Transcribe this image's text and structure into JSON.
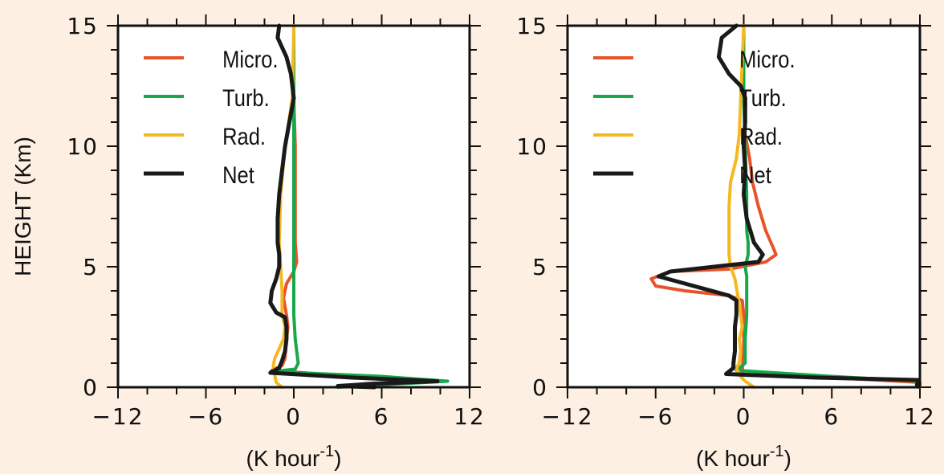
{
  "chart_data": [
    {
      "type": "line",
      "panel": "left",
      "ylabel": "HEIGHT (Km)",
      "xlabel": "(K hour",
      "xlabel_sup": "-1",
      "xlabel_close": ")",
      "xlim": [
        -12,
        12
      ],
      "ylim": [
        0,
        15
      ],
      "xticks": [
        -12,
        -6,
        0,
        6,
        12
      ],
      "xtick_labels": [
        "−12",
        "−6",
        "0",
        "6",
        "12"
      ],
      "yticks": [
        0,
        5,
        10,
        15
      ],
      "ytick_labels": [
        "0",
        "5",
        "10",
        "15"
      ],
      "legend_position": "top-left",
      "series": [
        {
          "name": "Micro.",
          "color": "#e8542a",
          "points": [
            [
              0,
              15
            ],
            [
              0,
              12
            ],
            [
              0.1,
              10
            ],
            [
              0.1,
              8
            ],
            [
              0.1,
              6
            ],
            [
              0.2,
              5.2
            ],
            [
              0,
              4.8
            ],
            [
              -0.5,
              4.3
            ],
            [
              -0.7,
              3.7
            ],
            [
              -0.5,
              3.0
            ],
            [
              -0.4,
              2.5
            ],
            [
              -0.5,
              2.0
            ],
            [
              -0.6,
              1.2
            ],
            [
              -0.8,
              0.9
            ],
            [
              -1.5,
              0.7
            ],
            [
              5,
              0.4
            ],
            [
              9.5,
              0.25
            ],
            [
              5,
              0.15
            ],
            [
              3.5,
              0.05
            ],
            [
              5.5,
              0
            ]
          ]
        },
        {
          "name": "Turb.",
          "color": "#17a84a",
          "points": [
            [
              0,
              15
            ],
            [
              0,
              10
            ],
            [
              0,
              6
            ],
            [
              0,
              4
            ],
            [
              0,
              3
            ],
            [
              0.1,
              2
            ],
            [
              0.2,
              1.5
            ],
            [
              0.3,
              1
            ],
            [
              0.1,
              0.75
            ],
            [
              -1.5,
              0.65
            ],
            [
              6,
              0.45
            ],
            [
              10.5,
              0.25
            ],
            [
              6,
              0.1
            ],
            [
              3,
              0
            ]
          ]
        },
        {
          "name": "Rad.",
          "color": "#f5b820",
          "points": [
            [
              0,
              15
            ],
            [
              -0.1,
              12
            ],
            [
              -0.6,
              10
            ],
            [
              -0.9,
              8
            ],
            [
              -1,
              6
            ],
            [
              -0.9,
              5
            ],
            [
              -0.8,
              4
            ],
            [
              -0.8,
              3
            ],
            [
              -0.6,
              2.5
            ],
            [
              -0.7,
              2
            ],
            [
              -1,
              1.6
            ],
            [
              -1.3,
              1.2
            ],
            [
              -1.4,
              0.9
            ],
            [
              -1.3,
              0.5
            ],
            [
              -1.2,
              0.2
            ],
            [
              -0.8,
              0
            ]
          ]
        },
        {
          "name": "Net",
          "color": "#1a1a1a",
          "points": [
            [
              -1,
              15
            ],
            [
              -1.1,
              14.5
            ],
            [
              -0.5,
              13.7
            ],
            [
              -0.2,
              13
            ],
            [
              0,
              12
            ],
            [
              -0.3,
              11
            ],
            [
              -0.6,
              10
            ],
            [
              -0.8,
              9
            ],
            [
              -1,
              8
            ],
            [
              -1.1,
              7
            ],
            [
              -1.1,
              6
            ],
            [
              -1,
              5.5
            ],
            [
              -1,
              5
            ],
            [
              -1.2,
              4.5
            ],
            [
              -1.5,
              4
            ],
            [
              -1.6,
              3.5
            ],
            [
              -1.2,
              3.1
            ],
            [
              -0.6,
              2.9
            ],
            [
              -0.5,
              2.5
            ],
            [
              -0.5,
              2
            ],
            [
              -0.6,
              1.5
            ],
            [
              -0.8,
              1.1
            ],
            [
              -1,
              0.8
            ],
            [
              -1.6,
              0.6
            ],
            [
              4,
              0.4
            ],
            [
              9.8,
              0.25
            ],
            [
              5.5,
              0.15
            ],
            [
              3,
              0.05
            ],
            [
              5.5,
              0
            ]
          ]
        }
      ]
    },
    {
      "type": "line",
      "panel": "right",
      "ylabel": "",
      "xlabel": "(K hour",
      "xlabel_sup": "-1",
      "xlabel_close": ")",
      "xlim": [
        -12,
        12
      ],
      "ylim": [
        0,
        15
      ],
      "xticks": [
        -12,
        -6,
        0,
        6,
        12
      ],
      "xtick_labels": [
        "−12",
        "−6",
        "0",
        "6",
        "12"
      ],
      "yticks": [
        0,
        5,
        10,
        15
      ],
      "ytick_labels": [
        "0",
        "5",
        "10",
        "15"
      ],
      "legend_position": "top-left",
      "series": [
        {
          "name": "Micro.",
          "color": "#e8542a",
          "points": [
            [
              0,
              15
            ],
            [
              0,
              12
            ],
            [
              0.1,
              10.5
            ],
            [
              0.4,
              9.5
            ],
            [
              0.6,
              8.5
            ],
            [
              1,
              7.5
            ],
            [
              1.5,
              6.5
            ],
            [
              2,
              5.8
            ],
            [
              2.2,
              5.5
            ],
            [
              1.5,
              5.2
            ],
            [
              -1,
              4.9
            ],
            [
              -5,
              4.8
            ],
            [
              -6.3,
              4.5
            ],
            [
              -6,
              4.2
            ],
            [
              -4,
              4
            ],
            [
              -1,
              3.8
            ],
            [
              -0.1,
              3.6
            ],
            [
              0,
              3
            ],
            [
              0,
              1.5
            ],
            [
              -0.1,
              0.7
            ],
            [
              0,
              0.5
            ],
            [
              6,
              0.4
            ],
            [
              12,
              0.2
            ],
            [
              12,
              0
            ]
          ]
        },
        {
          "name": "Turb.",
          "color": "#17a84a",
          "points": [
            [
              0,
              15
            ],
            [
              0,
              12
            ],
            [
              0.1,
              10
            ],
            [
              0.2,
              8
            ],
            [
              0.2,
              6.5
            ],
            [
              0.3,
              6
            ],
            [
              0.3,
              5.5
            ],
            [
              0.1,
              5
            ],
            [
              0.2,
              4.6
            ],
            [
              0.2,
              4
            ],
            [
              0.2,
              3
            ],
            [
              0.1,
              2
            ],
            [
              0.1,
              1
            ],
            [
              -0.5,
              0.7
            ],
            [
              6,
              0.45
            ],
            [
              11.9,
              0.25
            ],
            [
              11.9,
              0
            ]
          ]
        },
        {
          "name": "Rad.",
          "color": "#f5b820",
          "points": [
            [
              0,
              15
            ],
            [
              -0.2,
              12
            ],
            [
              -0.3,
              10.5
            ],
            [
              -0.5,
              9.5
            ],
            [
              -0.9,
              8.5
            ],
            [
              -1,
              7.5
            ],
            [
              -1,
              6.5
            ],
            [
              -1,
              5.5
            ],
            [
              -0.9,
              5
            ],
            [
              -0.6,
              4.5
            ],
            [
              -0.4,
              3.8
            ],
            [
              -0.2,
              3
            ],
            [
              -0.1,
              2.5
            ],
            [
              -0.3,
              2
            ],
            [
              -0.2,
              1.5
            ],
            [
              -0.3,
              1
            ],
            [
              -0.5,
              0.8
            ],
            [
              -0.3,
              0.5
            ],
            [
              0.1,
              0.25
            ],
            [
              0.7,
              0
            ]
          ]
        },
        {
          "name": "Net",
          "color": "#1a1a1a",
          "points": [
            [
              -0.5,
              15
            ],
            [
              -1.5,
              14.5
            ],
            [
              -1.7,
              13.7
            ],
            [
              -1,
              13
            ],
            [
              -0.2,
              12.5
            ],
            [
              0.1,
              12
            ],
            [
              0.1,
              11
            ],
            [
              0,
              10
            ],
            [
              0.1,
              9
            ],
            [
              0,
              8
            ],
            [
              0.2,
              7
            ],
            [
              0.7,
              6
            ],
            [
              1.3,
              5.5
            ],
            [
              1,
              5.2
            ],
            [
              -2,
              5
            ],
            [
              -5,
              4.8
            ],
            [
              -5.8,
              4.6
            ],
            [
              -4,
              4.3
            ],
            [
              -1,
              3.8
            ],
            [
              -0.5,
              3.6
            ],
            [
              -0.5,
              3
            ],
            [
              -0.6,
              2.5
            ],
            [
              -0.6,
              2
            ],
            [
              -0.6,
              1.5
            ],
            [
              -0.7,
              1
            ],
            [
              -0.7,
              0.8
            ],
            [
              -1.2,
              0.55
            ],
            [
              5,
              0.4
            ],
            [
              11.9,
              0.3
            ],
            [
              11.8,
              0.1
            ]
          ]
        }
      ]
    }
  ]
}
